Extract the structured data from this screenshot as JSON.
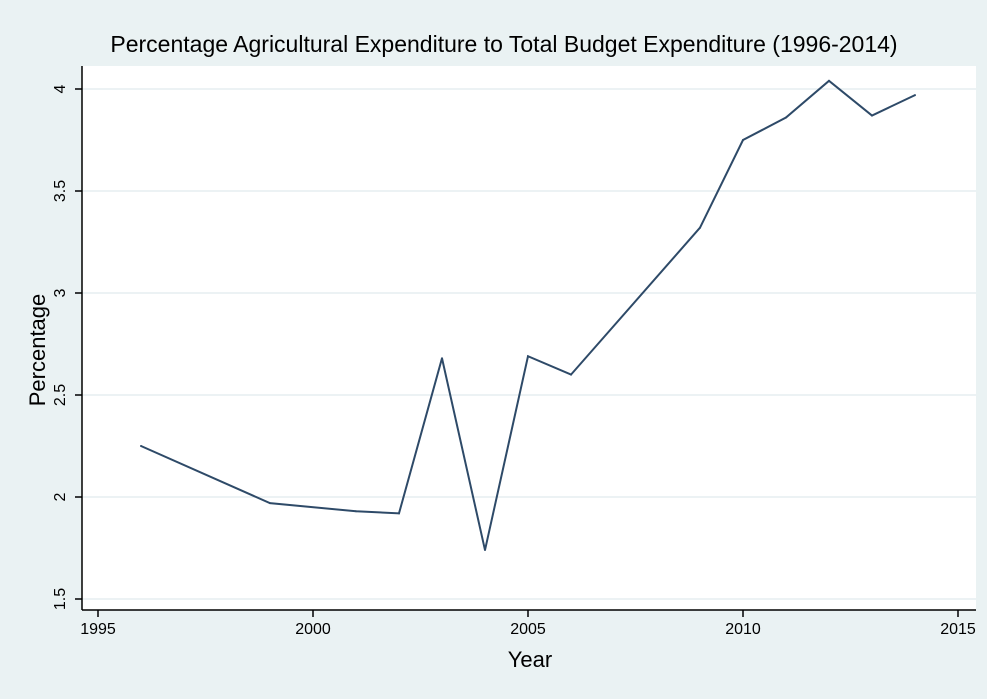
{
  "chart_data": {
    "type": "line",
    "title": "Percentage Agricultural Expenditure to Total Budget Expenditure (1996-2014)",
    "xlabel": "Year",
    "ylabel": "Percentage",
    "xlim": [
      1995,
      2015
    ],
    "ylim": [
      1.5,
      4
    ],
    "x_ticks": [
      1995,
      2000,
      2005,
      2010,
      2015
    ],
    "y_ticks": [
      1.5,
      2,
      2.5,
      3,
      3.5,
      4
    ],
    "y_tick_labels": [
      "1.5",
      "2",
      "2.5",
      "3",
      "3.5",
      "4"
    ],
    "grid": "horizontal",
    "series": [
      {
        "x": [
          1996,
          1999,
          2001,
          2002,
          2003,
          2004,
          2005,
          2006,
          2009,
          2010,
          2011,
          2012,
          2013,
          2014
        ],
        "y": [
          2.25,
          1.97,
          1.93,
          1.92,
          2.68,
          1.74,
          2.69,
          2.6,
          3.32,
          3.75,
          3.86,
          4.04,
          3.87,
          3.97
        ]
      }
    ]
  },
  "colors": {
    "page_background": "#eaf2f3",
    "plot_background": "#ffffff",
    "gridline": "#e6eef0",
    "series_line": "#2e4a68",
    "axis": "#000000"
  }
}
